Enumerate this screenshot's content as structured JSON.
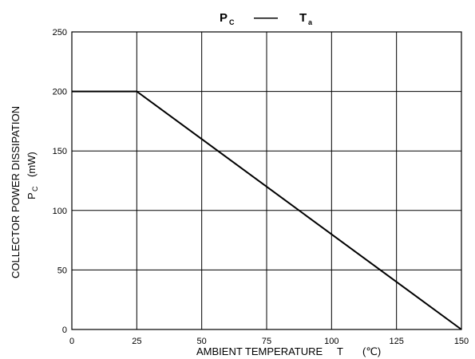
{
  "chart_data": {
    "type": "line",
    "title": {
      "main_left": "P",
      "sub_left": "C",
      "dash": "——",
      "main_right": "T",
      "sub_right": "a"
    },
    "xlabel": {
      "text": "AMBIENT TEMPERATURE",
      "symbol": "T",
      "unit": "(℃)"
    },
    "ylabel": {
      "line1": "COLLECTOR POWER DISSIPATION",
      "symbol_main": "P",
      "symbol_sub": "C",
      "unit": "(mW)"
    },
    "xlim": [
      0,
      150
    ],
    "ylim": [
      0,
      250
    ],
    "x_ticks": [
      0,
      25,
      50,
      75,
      100,
      125,
      150
    ],
    "y_ticks": [
      0,
      50,
      100,
      150,
      200,
      250
    ],
    "grid": true,
    "series": [
      {
        "x": [
          0,
          25,
          150
        ],
        "y": [
          200,
          200,
          0
        ]
      }
    ]
  }
}
